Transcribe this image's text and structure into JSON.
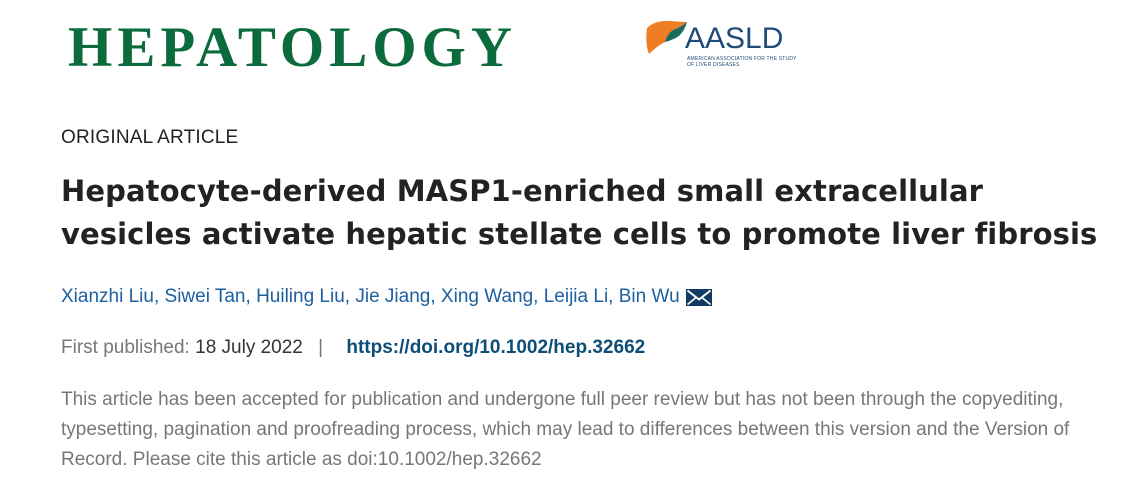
{
  "masthead": {
    "journal_title": "HEPATOLOGY",
    "society_name": "AASLD",
    "society_fullname": "American Association for the Study of Liver Diseases"
  },
  "article": {
    "type": "ORIGINAL ARTICLE",
    "title": "Hepatocyte-derived MASP1-enriched small extracellular vesicles activate hepatic stellate cells to promote liver fibrosis",
    "authors": [
      {
        "name": "Xianzhi Liu"
      },
      {
        "name": "Siwei Tan"
      },
      {
        "name": "Huiling Liu"
      },
      {
        "name": "Jie Jiang"
      },
      {
        "name": "Xing Wang"
      },
      {
        "name": "Leijia Li"
      },
      {
        "name": "Bin Wu"
      }
    ],
    "author_separator": ", ",
    "first_published_label": "First published:",
    "first_published_date": "18 July 2022",
    "pipe": "|",
    "doi_url": "https://doi.org/10.1002/hep.32662",
    "notice": "This article has been accepted for publication and undergone full peer review but has not been through the copyediting, typesetting, pagination and proofreading process, which may lead to differences between this version and the Version of Record. Please cite this article as doi:10.1002/hep.32662"
  },
  "icons": {
    "corresponding_author": "envelope-icon",
    "society_logo": "aasld-liver-logo"
  },
  "colors": {
    "journal_green": "#0c6b3c",
    "logo_orange": "#ef7d23",
    "logo_teal": "#1c6b5a",
    "logo_text": "#1f4b7a",
    "heading_text": "#222222",
    "body_text": "#333333",
    "link_blue": "#1d5fa0",
    "doi_blue": "#0e4d78",
    "muted_gray": "#777777",
    "icon_navy": "#123b63"
  }
}
